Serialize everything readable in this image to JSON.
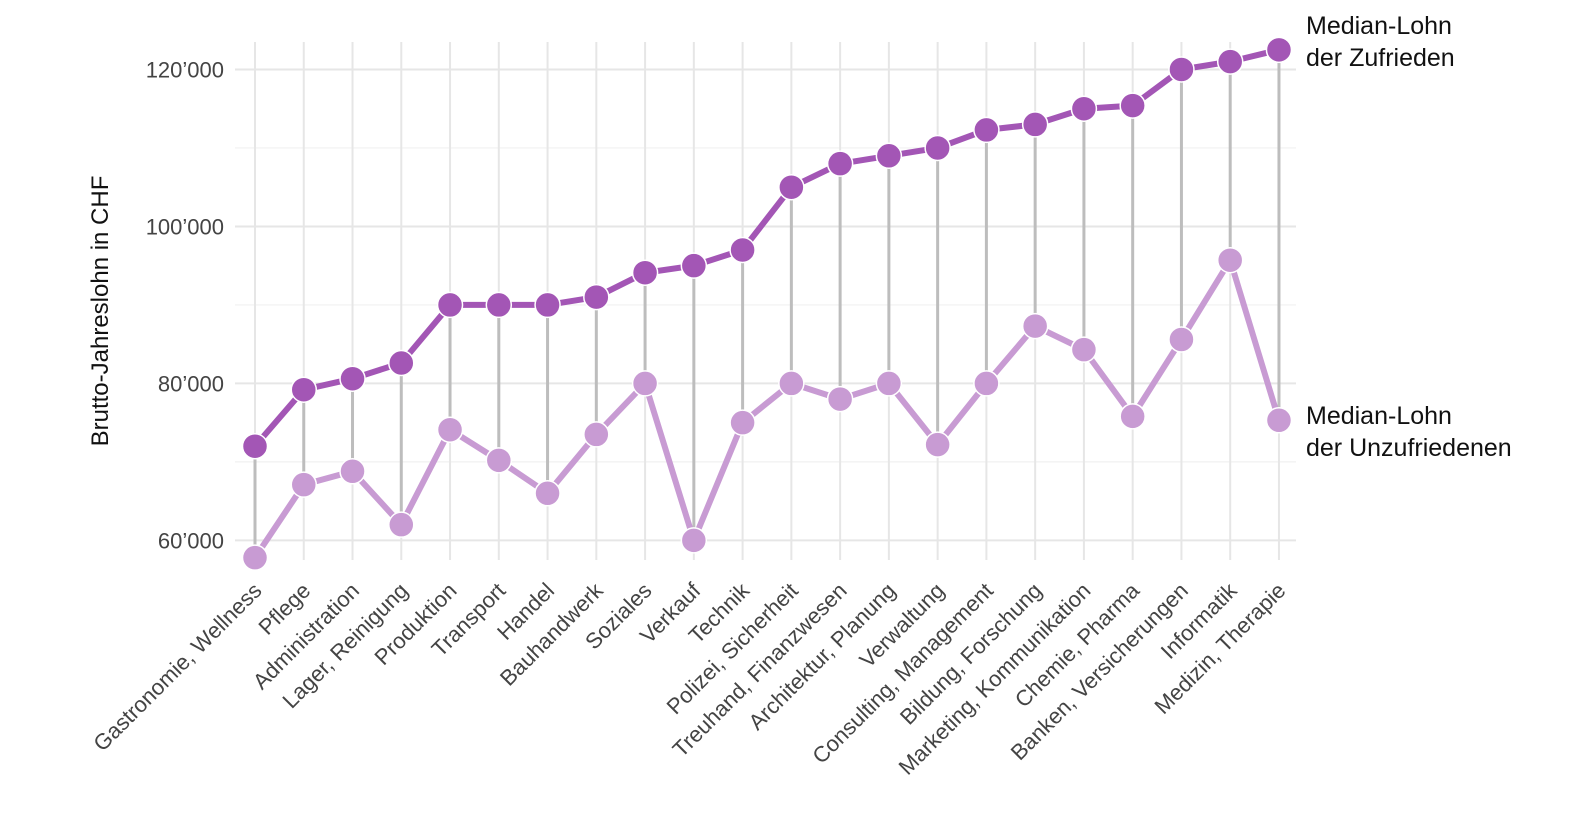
{
  "chart_data": {
    "type": "line",
    "ylabel": "Brutto-Jahreslohn in CHF",
    "ylim": [
      57500,
      123500
    ],
    "y_ticks": [
      60000,
      80000,
      100000,
      120000
    ],
    "y_tick_labels": [
      "60’000",
      "80’000",
      "100’000",
      "120’000"
    ],
    "categories": [
      "Gastronomie, Wellness",
      "Pflege",
      "Administration",
      "Lager, Reinigung",
      "Produktion",
      "Transport",
      "Handel",
      "Bauhandwerk",
      "Soziales",
      "Verkauf",
      "Technik",
      "Polizei, Sicherheit",
      "Treuhand, Finanzwesen",
      "Architektur, Planung",
      "Verwaltung",
      "Consulting, Management",
      "Bildung, Forschung",
      "Marketing, Kommunikation",
      "Chemie, Pharma",
      "Banken, Versicherungen",
      "Informatik",
      "Medizin, Therapie"
    ],
    "series": [
      {
        "name": "Median-Lohn der Zufrieden",
        "label_lines": [
          "Median-Lohn",
          "der Zufrieden"
        ],
        "color": "#a356b5",
        "values": [
          72000,
          79200,
          80600,
          82600,
          90000,
          90000,
          90000,
          91000,
          94100,
          95000,
          97000,
          105000,
          108000,
          109000,
          110000,
          112300,
          113000,
          115000,
          115400,
          120000,
          121000,
          122500
        ]
      },
      {
        "name": "Median-Lohn der Unzufriedenen",
        "label_lines": [
          "Median-Lohn",
          "der Unzufriedenen"
        ],
        "color": "#c89bd3",
        "values": [
          57800,
          67100,
          68800,
          62000,
          74100,
          70200,
          66000,
          73500,
          80000,
          60000,
          75000,
          80000,
          78000,
          80000,
          72200,
          80000,
          87300,
          84300,
          75800,
          85600,
          95700,
          75300
        ]
      }
    ],
    "connector_color": "#bdbdbd",
    "grid": true,
    "legend": "direct labels at right"
  }
}
